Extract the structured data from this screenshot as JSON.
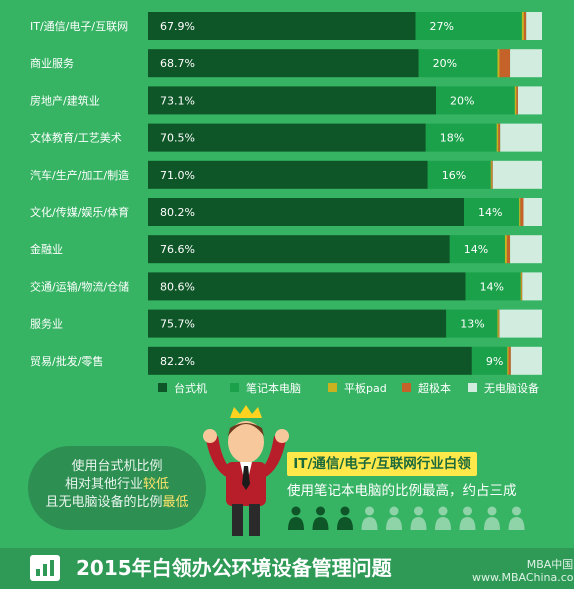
{
  "chart_data": {
    "type": "bar",
    "stacked": true,
    "orientation": "horizontal",
    "categories": [
      "IT/通信/电子/互联网",
      "商业服务",
      "房地产/建筑业",
      "文体教育/工艺美术",
      "汽车/生产/加工/制造",
      "文化/传媒/娱乐/体育",
      "金融业",
      "交通/运输/物流/仓储",
      "服务业",
      "贸易/批发/零售"
    ],
    "series": [
      {
        "name": "台式机",
        "color": "#0e5527",
        "values": [
          67.9,
          68.7,
          73.1,
          70.5,
          71.0,
          80.2,
          76.6,
          80.6,
          75.7,
          82.2
        ],
        "labels": [
          "67.9%",
          "68.7%",
          "73.1%",
          "70.5%",
          "71.0%",
          "80.2%",
          "76.6%",
          "80.6%",
          "75.7%",
          "82.2%"
        ]
      },
      {
        "name": "笔记本电脑",
        "color": "#1aa14a",
        "values": [
          27,
          20,
          20,
          18,
          16,
          14,
          14,
          14,
          13,
          9
        ],
        "labels": [
          "27%",
          "20%",
          "20%",
          "18%",
          "16%",
          "14%",
          "14%",
          "14%",
          "13%",
          "9%"
        ]
      },
      {
        "name": "平板pad",
        "color": "#c9b21f",
        "values": [
          0.5,
          0.5,
          0.4,
          0.4,
          0.2,
          0.3,
          0.5,
          0.2,
          0.3,
          0.3
        ]
      },
      {
        "name": "超极本",
        "color": "#c4622a",
        "values": [
          0.6,
          2.7,
          0.4,
          0.5,
          0.3,
          0.8,
          0.8,
          0.2,
          0.2,
          0.6
        ]
      },
      {
        "name": "无电脑设备",
        "color": "#d2ede0",
        "values": [
          4.0,
          8.1,
          6.1,
          10.6,
          12.5,
          4.7,
          8.1,
          5.0,
          10.8,
          7.9
        ]
      }
    ],
    "xlim": [
      0,
      100
    ],
    "legend_position": "bottom"
  },
  "bubble_left": {
    "line1": "使用台式机比例",
    "line2_a": "相对其他行业",
    "line2_b": "较低",
    "line3_a": "且无电脑设备的比例",
    "line3_b": "最低"
  },
  "tag": "IT/通信/电子/互联网行业白领",
  "conclusion": "使用笔记本电脑的比例最高，约占三成",
  "footer": {
    "title": "2015年白领办公环境设备管理问题"
  },
  "watermark": {
    "line1": "MBA中国网",
    "line2": "www.MBAChina.com"
  },
  "colors": {
    "background": "#36b464",
    "icon_dark": "#0e5527",
    "icon_light": "#8fd3a8",
    "highlight": "#ffe84a"
  }
}
